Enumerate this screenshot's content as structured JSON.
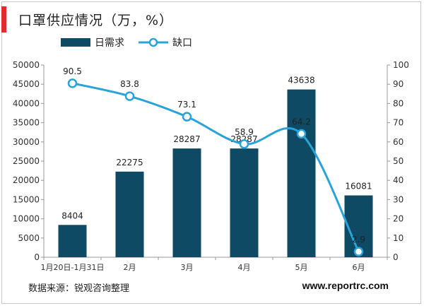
{
  "header": {
    "title": "口罩供应情况（万，%）"
  },
  "footer": {
    "source": "数据来源：锐观咨询整理",
    "website": "www.reportrc.com"
  },
  "colors": {
    "bar": "#0e4a63",
    "line": "#2aa3d9",
    "accent": "#e32b2b"
  },
  "chart_data": {
    "type": "bar+line",
    "categories": [
      "1月20日-1月31日",
      "2月",
      "3月",
      "4月",
      "5月",
      "6月"
    ],
    "series": [
      {
        "name": "日需求",
        "type": "bar",
        "axis": "left",
        "values": [
          8404,
          22275,
          28287,
          28287,
          43638,
          16081
        ]
      },
      {
        "name": "缺口",
        "type": "line",
        "axis": "right",
        "values": [
          90.5,
          83.8,
          73.1,
          58.9,
          64.2,
          2.9
        ]
      }
    ],
    "y_left": {
      "min": 0,
      "max": 50000,
      "ticks": [
        0,
        5000,
        10000,
        15000,
        20000,
        25000,
        30000,
        35000,
        40000,
        45000,
        50000
      ]
    },
    "y_right": {
      "min": 0,
      "max": 100,
      "ticks": [
        0,
        10,
        20,
        30,
        40,
        50,
        60,
        70,
        80,
        90,
        100
      ]
    },
    "legend": "top-left",
    "grid": false
  }
}
